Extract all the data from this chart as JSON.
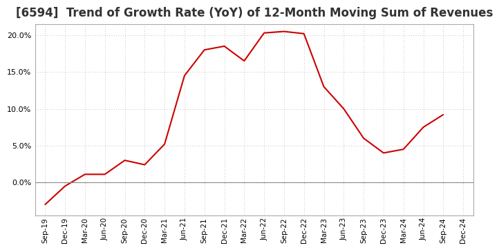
{
  "title": "[6594]  Trend of Growth Rate (YoY) of 12-Month Moving Sum of Revenues",
  "x_labels": [
    "Sep-19",
    "Dec-19",
    "Mar-20",
    "Jun-20",
    "Sep-20",
    "Dec-20",
    "Mar-21",
    "Jun-21",
    "Sep-21",
    "Dec-21",
    "Mar-22",
    "Jun-22",
    "Sep-22",
    "Dec-22",
    "Mar-23",
    "Jun-23",
    "Sep-23",
    "Dec-23",
    "Mar-24",
    "Jun-24",
    "Sep-24",
    "Dec-24"
  ],
  "y_values": [
    -3.0,
    -0.5,
    1.1,
    1.1,
    3.0,
    2.4,
    5.2,
    14.5,
    18.0,
    18.5,
    16.5,
    20.3,
    20.5,
    20.2,
    13.0,
    10.0,
    6.0,
    4.0,
    4.5,
    7.5,
    9.2,
    null
  ],
  "line_color": "#cc0000",
  "background_color": "#ffffff",
  "grid_color": "#aaaaaa",
  "title_fontsize": 12,
  "ylim": [
    -4.5,
    21.5
  ],
  "yticks": [
    0.0,
    5.0,
    10.0,
    15.0,
    20.0
  ],
  "zero_line_color": "#888888",
  "border_color": "#aaaaaa"
}
